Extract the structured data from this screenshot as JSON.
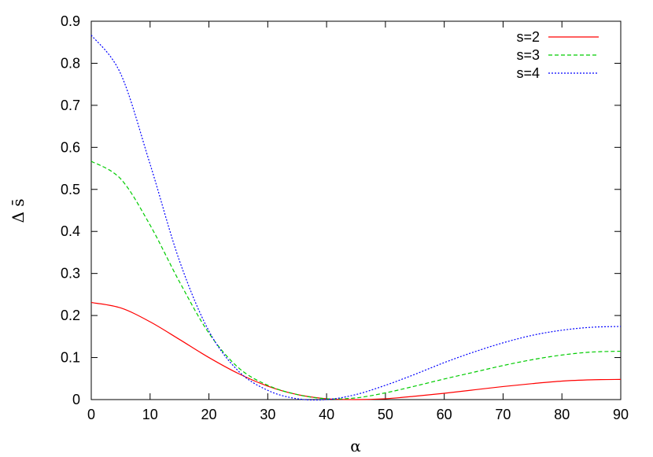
{
  "chart_data": {
    "type": "line",
    "title": "",
    "xlabel": "α",
    "ylabel": "Δ s̄",
    "xlim": [
      0,
      90
    ],
    "ylim": [
      0,
      0.9
    ],
    "xticks": [
      0,
      10,
      20,
      30,
      40,
      50,
      60,
      70,
      80,
      90
    ],
    "yticks": [
      0,
      0.1,
      0.2,
      0.3,
      0.4,
      0.5,
      0.6,
      0.7,
      0.8,
      0.9
    ],
    "grid": false,
    "legend_position": "top-right",
    "x": [
      0,
      5,
      10,
      15,
      20,
      25,
      30,
      35,
      40,
      45,
      50,
      55,
      60,
      65,
      70,
      75,
      80,
      85,
      90
    ],
    "series": [
      {
        "name": "s=2",
        "color": "#ff0000",
        "dash": "solid",
        "values": [
          0.231,
          0.218,
          0.185,
          0.143,
          0.1,
          0.062,
          0.032,
          0.012,
          0.002,
          0.0,
          0.002,
          0.008,
          0.015,
          0.023,
          0.031,
          0.038,
          0.044,
          0.047,
          0.048
        ]
      },
      {
        "name": "s=3",
        "color": "#00cc00",
        "dash": "dashed",
        "values": [
          0.567,
          0.525,
          0.415,
          0.28,
          0.158,
          0.076,
          0.034,
          0.012,
          0.002,
          0.004,
          0.016,
          0.032,
          0.049,
          0.065,
          0.081,
          0.095,
          0.106,
          0.113,
          0.115
        ]
      },
      {
        "name": "s=4",
        "color": "#0000ff",
        "dash": "dotted",
        "values": [
          0.867,
          0.775,
          0.56,
          0.33,
          0.163,
          0.068,
          0.022,
          0.002,
          0.0,
          0.012,
          0.034,
          0.06,
          0.088,
          0.113,
          0.135,
          0.153,
          0.165,
          0.172,
          0.174
        ]
      }
    ]
  }
}
